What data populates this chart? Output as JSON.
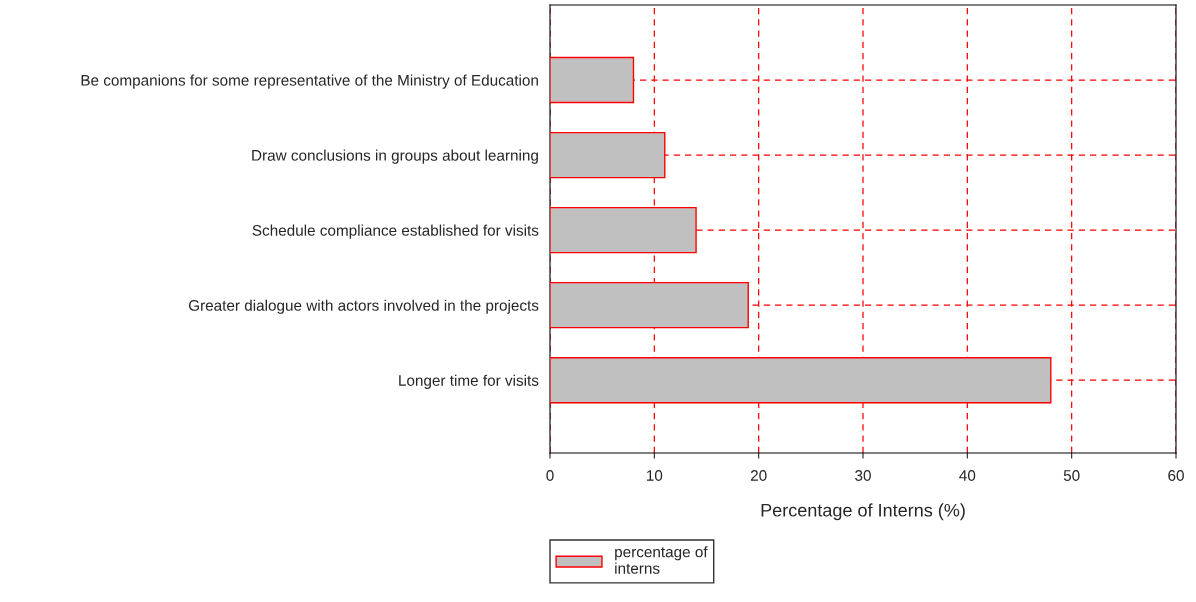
{
  "chart_data": {
    "type": "bar",
    "orientation": "horizontal",
    "xlabel": "Percentage of Interns (%)",
    "categories": [
      "Be companions for some representative of the Ministry of Education",
      "Draw conclusions in groups about learning",
      "Schedule compliance established for visits",
      "Greater dialogue with actors involved in the projects",
      "Longer time for visits"
    ],
    "series": [
      {
        "name": "percentage of\ninterns",
        "color": "#c0c0c0",
        "values": [
          8,
          11,
          14,
          19,
          48
        ]
      }
    ],
    "xlim": [
      0,
      60
    ],
    "xticks": [
      0,
      10,
      20,
      30,
      40,
      50,
      60
    ],
    "grid": true,
    "legend": "bottom left"
  }
}
